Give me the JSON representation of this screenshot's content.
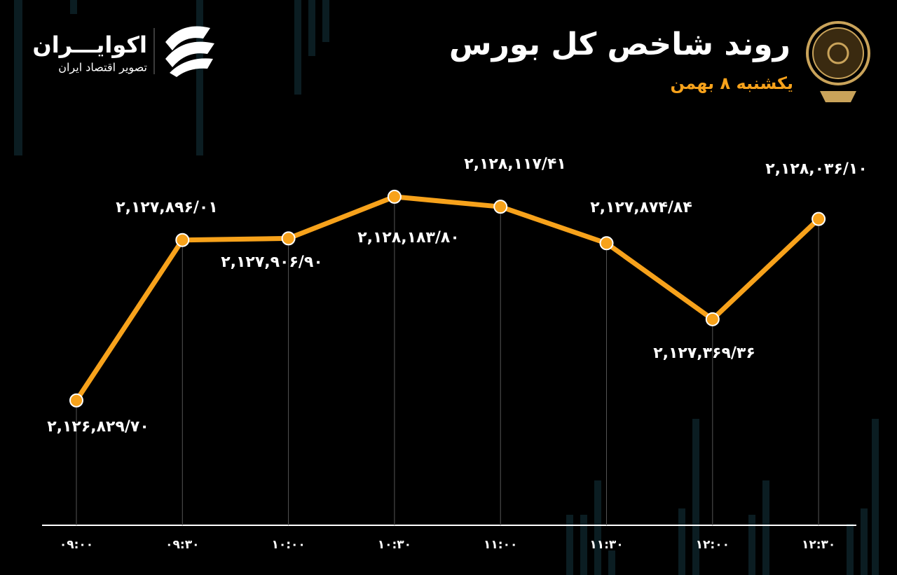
{
  "chart_data": {
    "type": "line",
    "title": "روند شاخص کل بورس",
    "subtitle": "یکشنبه ۸ بهمن",
    "brand": "اکوایـــران",
    "brand_tagline": "تصویر اقتصاد ایران",
    "categories": [
      "۰۹:۰۰",
      "۰۹:۳۰",
      "۱۰:۰۰",
      "۱۰:۳۰",
      "۱۱:۰۰",
      "۱۱:۳۰",
      "۱۲:۰۰",
      "۱۲:۳۰"
    ],
    "values": [
      2126829.7,
      2127896.01,
      2127906.9,
      2128183.8,
      2128117.41,
      2127874.84,
      2127369.36,
      2128036.1
    ],
    "value_labels": [
      "۲,۱۲۶,۸۲۹/۷۰",
      "۲,۱۲۷,۸۹۶/۰۱",
      "۲,۱۲۷,۹۰۶/۹۰",
      "۲,۱۲۸,۱۸۳/۸۰",
      "۲,۱۲۸,۱۱۷/۴۱",
      "۲,۱۲۷,۸۷۴/۸۴",
      "۲,۱۲۷,۳۶۹/۳۶",
      "۲,۱۲۸,۰۳۶/۱۰"
    ],
    "color": "#f7a21b",
    "ylim": [
      2126000,
      2128500
    ]
  }
}
